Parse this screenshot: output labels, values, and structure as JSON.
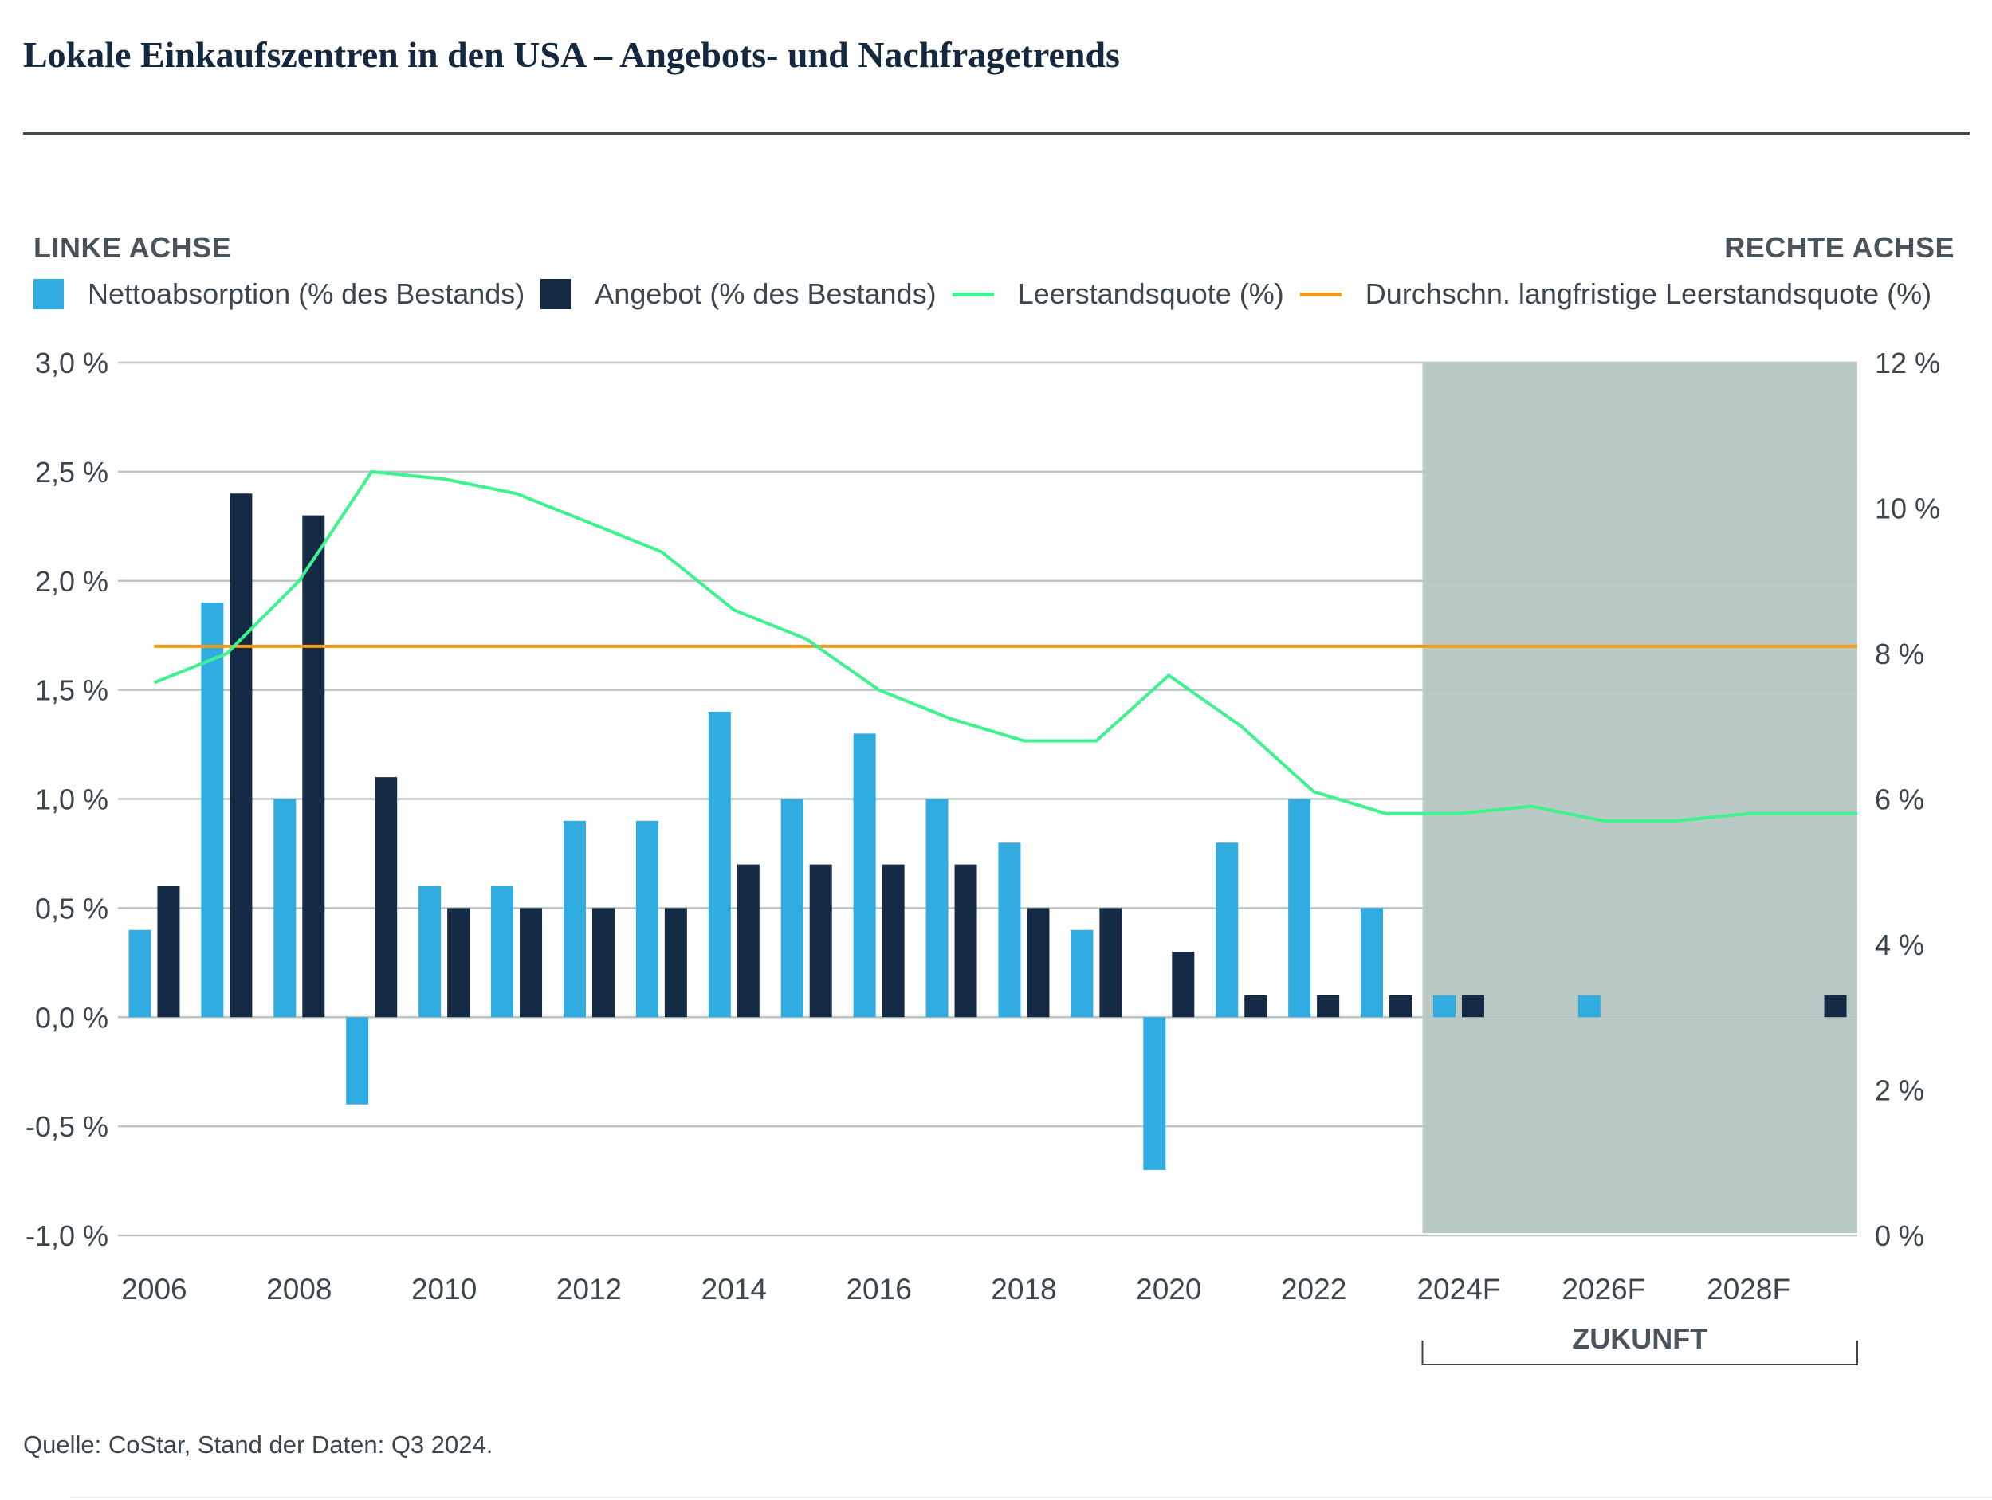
{
  "title": "Lokale Einkaufszentren in den USA – Angebots- und Nachfragetrends",
  "left_axis_heading": "LINKE ACHSE",
  "right_axis_heading": "RECHTE ACHSE",
  "source": "Quelle: CoStar, Stand der Daten: Q3 2024.",
  "colors": {
    "absorption": "#31ACE0",
    "supply": "#152A45",
    "vacancy": "#3EF28E",
    "avg_vacancy": "#F19A1C",
    "forecast_band": "#B8C9C6",
    "gridline": "#B9C4C3"
  },
  "chart_data": {
    "type": "bar",
    "title": "Lokale Einkaufszentren in den USA – Angebots- und Nachfragetrends",
    "categories": [
      "2006",
      "2007",
      "2008",
      "2009",
      "2010",
      "2011",
      "2012",
      "2013",
      "2014",
      "2015",
      "2016",
      "2017",
      "2018",
      "2019",
      "2020",
      "2021",
      "2022",
      "2023",
      "2024F",
      "2025F",
      "2026F",
      "2027F",
      "2028F",
      "2029F"
    ],
    "x_tick_labels": [
      "2006",
      "2008",
      "2010",
      "2012",
      "2014",
      "2016",
      "2018",
      "2020",
      "2022",
      "2024F",
      "2026F",
      "2028F"
    ],
    "series": [
      {
        "name": "Nettoabsorption (% des Bestands)",
        "axis": "left",
        "kind": "bar",
        "values": [
          0.4,
          1.9,
          1.0,
          -0.4,
          0.6,
          0.6,
          0.9,
          0.9,
          1.4,
          1.0,
          1.3,
          1.0,
          0.8,
          0.4,
          -0.7,
          0.8,
          1.0,
          0.5,
          0.1,
          0.0,
          0.1,
          0.0,
          0.0,
          0.0
        ]
      },
      {
        "name": "Angebot (% des Bestands)",
        "axis": "left",
        "kind": "bar",
        "values": [
          0.6,
          2.4,
          2.3,
          1.1,
          0.5,
          0.5,
          0.5,
          0.5,
          0.7,
          0.7,
          0.7,
          0.7,
          0.5,
          0.5,
          0.3,
          0.1,
          0.1,
          0.1,
          0.1,
          0.0,
          0.0,
          0.0,
          0.0,
          0.1
        ]
      },
      {
        "name": "Leerstandsquote (%)",
        "axis": "right",
        "kind": "line",
        "values": [
          7.6,
          8.0,
          9.0,
          10.5,
          10.4,
          10.2,
          9.8,
          9.4,
          8.6,
          8.2,
          7.5,
          7.1,
          6.8,
          6.8,
          7.7,
          7.0,
          6.1,
          5.8,
          5.8,
          5.9,
          5.7,
          5.7,
          5.8,
          5.8
        ]
      },
      {
        "name": "Durchschn. langfristige Leerstandsquote (%)",
        "axis": "right",
        "kind": "line",
        "values": [
          8.1,
          8.1,
          8.1,
          8.1,
          8.1,
          8.1,
          8.1,
          8.1,
          8.1,
          8.1,
          8.1,
          8.1,
          8.1,
          8.1,
          8.1,
          8.1,
          8.1,
          8.1,
          8.1,
          8.1,
          8.1,
          8.1,
          8.1,
          8.1
        ]
      }
    ],
    "left_axis": {
      "ylim": [
        -1.0,
        3.0
      ],
      "ticks": [
        -1.0,
        -0.5,
        0.0,
        0.5,
        1.0,
        1.5,
        2.0,
        2.5,
        3.0
      ],
      "tick_labels": [
        "-1,0 %",
        "-0,5 %",
        "0,0 %",
        "0,5 %",
        "1,0 %",
        "1,5 %",
        "2,0 %",
        "2,5 %",
        "3,0 %"
      ]
    },
    "right_axis": {
      "ylim": [
        0,
        12
      ],
      "ticks": [
        0,
        2,
        4,
        6,
        8,
        10,
        12
      ],
      "tick_labels": [
        "0 %",
        "2 %",
        "4 %",
        "6 %",
        "8 %",
        "10 %",
        "12 %"
      ]
    },
    "forecast_start": "2024F",
    "forecast_label": "ZUKUNFT",
    "grid": true
  }
}
